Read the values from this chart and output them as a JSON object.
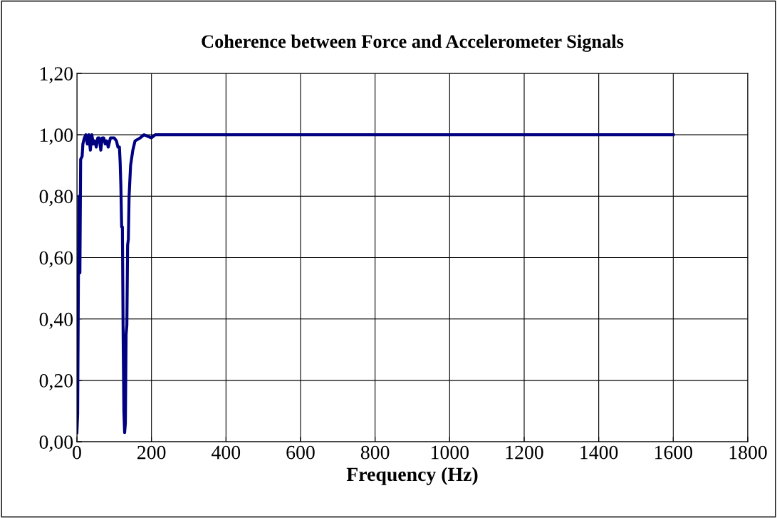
{
  "chart_data": {
    "type": "line",
    "title": "Coherence between Force and Accelerometer Signals",
    "xlabel": "Frequency (Hz)",
    "x": [
      0,
      2,
      4,
      6,
      8,
      10,
      14,
      16,
      20,
      24,
      28,
      32,
      36,
      40,
      44,
      48,
      52,
      56,
      60,
      64,
      68,
      72,
      76,
      80,
      84,
      90,
      100,
      106,
      110,
      114,
      116,
      118,
      120,
      122,
      124,
      126,
      128,
      130,
      132,
      134,
      136,
      138,
      140,
      144,
      150,
      156,
      170,
      180,
      200,
      210,
      220,
      1600
    ],
    "series": [
      {
        "color": "#000080",
        "values": [
          0.03,
          0.09,
          0.53,
          0.8,
          0.55,
          0.92,
          0.93,
          0.97,
          0.99,
          1.0,
          0.97,
          1.0,
          0.95,
          1.0,
          0.97,
          0.98,
          0.96,
          0.99,
          0.99,
          0.95,
          0.99,
          0.99,
          0.97,
          0.98,
          0.96,
          0.99,
          0.99,
          0.98,
          0.96,
          0.96,
          0.91,
          0.83,
          0.7,
          0.7,
          0.35,
          0.1,
          0.03,
          0.06,
          0.35,
          0.38,
          0.64,
          0.66,
          0.8,
          0.9,
          0.95,
          0.98,
          0.99,
          1.0,
          0.99,
          1.0,
          1.0,
          1.0
        ]
      }
    ],
    "xlim": [
      0,
      1800
    ],
    "xticks": [
      0,
      200,
      400,
      600,
      800,
      1000,
      1200,
      1400,
      1600,
      1800
    ],
    "ylim": [
      0,
      1.2
    ],
    "yticks": [
      {
        "value": 0,
        "label": "0,00"
      },
      {
        "value": 0.2,
        "label": "0,20"
      },
      {
        "value": 0.4,
        "label": "0,40"
      },
      {
        "value": 0.6,
        "label": "0,60"
      },
      {
        "value": 0.8,
        "label": "0,80"
      },
      {
        "value": 1.0,
        "label": "1,00"
      },
      {
        "value": 1.2,
        "label": "1,20"
      }
    ],
    "grid": true,
    "marker": "none",
    "line_style": "solid"
  }
}
